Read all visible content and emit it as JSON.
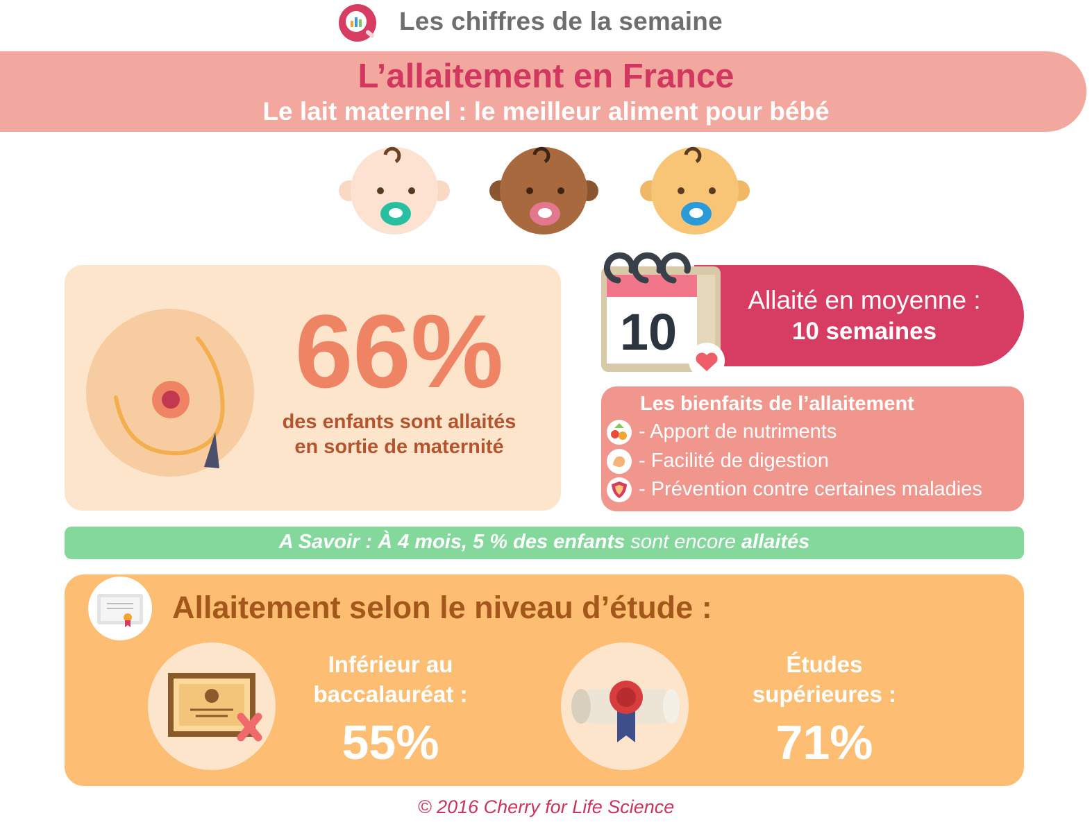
{
  "header": {
    "title": "Les chiffres de la semaine",
    "icon": "magnifier-chart-icon"
  },
  "banner": {
    "title": "L’allaitement en France",
    "subtitle": "Le lait maternel : le meilleur aliment pour bébé"
  },
  "stat_main": {
    "value": "66%",
    "line1": "des enfants sont allaités",
    "line2": "en sortie de maternité"
  },
  "duration": {
    "calendar_number": "10",
    "label": "Allaité en moyenne :",
    "value": "10 semaines"
  },
  "benefits": {
    "title": "Les bienfaits de l’allaitement",
    "items": [
      "- Apport de nutriments",
      "- Facilité de digestion",
      "- Prévention contre certaines maladies"
    ]
  },
  "savoir": {
    "lead": "A Savoir",
    "sep": " : ",
    "part1": "À 4 mois, 5 % des enfants",
    "part2": " sont encore ",
    "part3": "allaités"
  },
  "study": {
    "title": "Allaitement selon le niveau d’étude :",
    "left": {
      "line1": "Inférieur au",
      "line2": "baccalauréat :",
      "value": "55%"
    },
    "right": {
      "line1": "Études",
      "line2": "supérieures :",
      "value": "71%"
    }
  },
  "footer": "© 2016 Cherry for Life Science",
  "colors": {
    "pink": "#d2375f",
    "salmon": "#f2a89f",
    "cream": "#fde5cc",
    "orange": "#fdbe74",
    "green": "#85d89b"
  }
}
